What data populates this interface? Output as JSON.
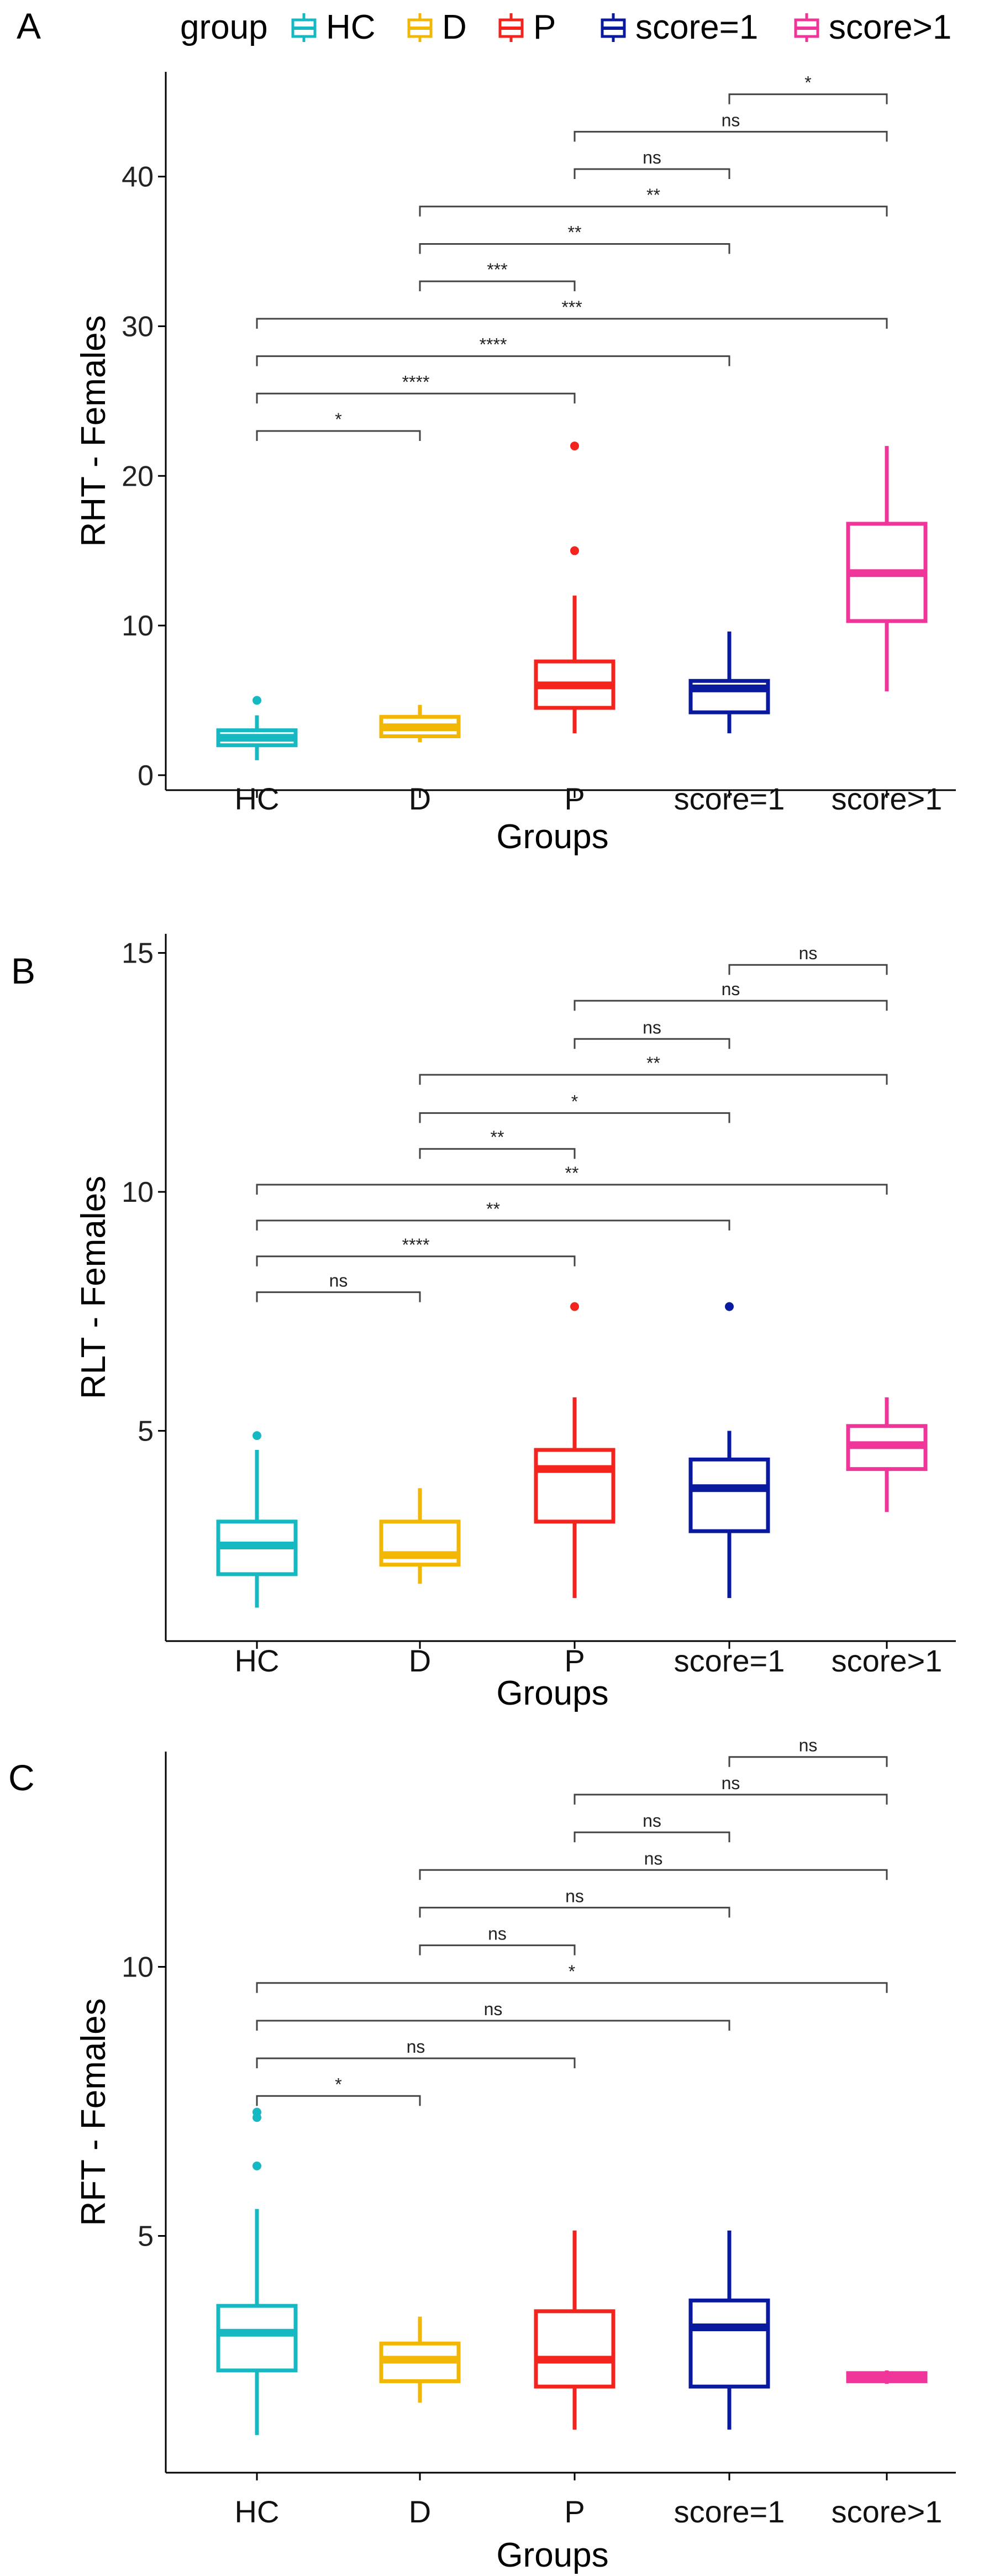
{
  "legend": {
    "title": "group",
    "items": [
      {
        "label": "HC",
        "color": "#16B8C2"
      },
      {
        "label": "D",
        "color": "#F2B705"
      },
      {
        "label": "P",
        "color": "#F2241D"
      },
      {
        "label": "score=1",
        "color": "#0A1A9E"
      },
      {
        "label": "score>1",
        "color": "#F0359A"
      }
    ]
  },
  "chart_data": [
    {
      "type": "box",
      "panel": "A",
      "ylabel": "RHT - Females",
      "xlabel": "Groups",
      "categories": [
        "HC",
        "D",
        "P",
        "score=1",
        "score>1"
      ],
      "colors": [
        "#16B8C2",
        "#F2B705",
        "#F2241D",
        "#0A1A9E",
        "#F0359A"
      ],
      "ylim": [
        -1,
        47
      ],
      "yticks": [
        0,
        10,
        20,
        30,
        40
      ],
      "boxes": [
        {
          "min": 1.0,
          "q1": 2.0,
          "median": 2.5,
          "q3": 3.0,
          "max": 4.0,
          "outliers": [
            5.0
          ]
        },
        {
          "min": 2.2,
          "q1": 2.6,
          "median": 3.2,
          "q3": 3.9,
          "max": 4.7,
          "outliers": []
        },
        {
          "min": 2.8,
          "q1": 4.5,
          "median": 6.0,
          "q3": 7.6,
          "max": 12.0,
          "outliers": [
            15.0,
            22.0
          ]
        },
        {
          "min": 2.8,
          "q1": 4.2,
          "median": 5.8,
          "q3": 6.3,
          "max": 9.6,
          "outliers": []
        },
        {
          "min": 5.6,
          "q1": 10.3,
          "median": 13.5,
          "q3": 16.8,
          "max": 22.0,
          "outliers": []
        }
      ],
      "comparisons": [
        {
          "a": 0,
          "b": 1,
          "y": 23.0,
          "label": "*"
        },
        {
          "a": 0,
          "b": 2,
          "y": 25.5,
          "label": "****"
        },
        {
          "a": 0,
          "b": 3,
          "y": 28.0,
          "label": "****"
        },
        {
          "a": 0,
          "b": 4,
          "y": 30.5,
          "label": "***"
        },
        {
          "a": 1,
          "b": 2,
          "y": 33.0,
          "label": "***"
        },
        {
          "a": 1,
          "b": 3,
          "y": 35.5,
          "label": "**"
        },
        {
          "a": 1,
          "b": 4,
          "y": 38.0,
          "label": "**"
        },
        {
          "a": 2,
          "b": 3,
          "y": 40.5,
          "label": "ns"
        },
        {
          "a": 2,
          "b": 4,
          "y": 43.0,
          "label": "ns"
        },
        {
          "a": 3,
          "b": 4,
          "y": 45.5,
          "label": "*"
        }
      ]
    },
    {
      "type": "box",
      "panel": "B",
      "ylabel": "RLT - Females",
      "xlabel": "Groups",
      "categories": [
        "HC",
        "D",
        "P",
        "score=1",
        "score>1"
      ],
      "colors": [
        "#16B8C2",
        "#F2B705",
        "#F2241D",
        "#0A1A9E",
        "#F0359A"
      ],
      "ylim": [
        0.6,
        15.4
      ],
      "yticks": [
        5,
        10,
        15
      ],
      "boxes": [
        {
          "min": 1.3,
          "q1": 2.0,
          "median": 2.6,
          "q3": 3.1,
          "max": 4.6,
          "outliers": [
            4.9
          ]
        },
        {
          "min": 1.8,
          "q1": 2.2,
          "median": 2.4,
          "q3": 3.1,
          "max": 3.8,
          "outliers": []
        },
        {
          "min": 1.5,
          "q1": 3.1,
          "median": 4.2,
          "q3": 4.6,
          "max": 5.7,
          "outliers": [
            7.6
          ]
        },
        {
          "min": 1.5,
          "q1": 2.9,
          "median": 3.8,
          "q3": 4.4,
          "max": 5.0,
          "outliers": [
            7.6
          ]
        },
        {
          "min": 3.3,
          "q1": 4.2,
          "median": 4.7,
          "q3": 5.1,
          "max": 5.7,
          "outliers": []
        }
      ],
      "comparisons": [
        {
          "a": 0,
          "b": 1,
          "y": 7.9,
          "label": "ns"
        },
        {
          "a": 0,
          "b": 2,
          "y": 8.65,
          "label": "****"
        },
        {
          "a": 0,
          "b": 3,
          "y": 9.4,
          "label": "**"
        },
        {
          "a": 0,
          "b": 4,
          "y": 10.15,
          "label": "**"
        },
        {
          "a": 1,
          "b": 2,
          "y": 10.9,
          "label": "**"
        },
        {
          "a": 1,
          "b": 3,
          "y": 11.65,
          "label": "*"
        },
        {
          "a": 1,
          "b": 4,
          "y": 12.45,
          "label": "**"
        },
        {
          "a": 2,
          "b": 3,
          "y": 13.2,
          "label": "ns"
        },
        {
          "a": 2,
          "b": 4,
          "y": 14.0,
          "label": "ns"
        },
        {
          "a": 3,
          "b": 4,
          "y": 14.75,
          "label": "ns"
        }
      ]
    },
    {
      "type": "box",
      "panel": "C",
      "ylabel": "RFT - Females",
      "xlabel": "Groups",
      "categories": [
        "HC",
        "D",
        "P",
        "score=1",
        "score>1"
      ],
      "colors": [
        "#16B8C2",
        "#F2B705",
        "#F2241D",
        "#0A1A9E",
        "#F0359A"
      ],
      "ylim": [
        0.6,
        14.0
      ],
      "yticks": [
        5,
        10
      ],
      "boxes": [
        {
          "min": 1.3,
          "q1": 2.5,
          "median": 3.2,
          "q3": 3.7,
          "max": 5.5,
          "outliers": [
            6.3,
            7.2,
            7.3
          ]
        },
        {
          "min": 1.9,
          "q1": 2.3,
          "median": 2.7,
          "q3": 3.0,
          "max": 3.5,
          "outliers": []
        },
        {
          "min": 1.4,
          "q1": 2.2,
          "median": 2.7,
          "q3": 3.6,
          "max": 5.1,
          "outliers": []
        },
        {
          "min": 1.4,
          "q1": 2.2,
          "median": 3.3,
          "q3": 3.8,
          "max": 5.1,
          "outliers": []
        },
        {
          "min": 2.25,
          "q1": 2.3,
          "median": 2.35,
          "q3": 2.45,
          "max": 2.5,
          "outliers": []
        }
      ],
      "comparisons": [
        {
          "a": 0,
          "b": 1,
          "y": 7.6,
          "label": "*"
        },
        {
          "a": 0,
          "b": 2,
          "y": 8.3,
          "label": "ns"
        },
        {
          "a": 0,
          "b": 3,
          "y": 9.0,
          "label": "ns"
        },
        {
          "a": 0,
          "b": 4,
          "y": 9.7,
          "label": "*"
        },
        {
          "a": 1,
          "b": 2,
          "y": 10.4,
          "label": "ns"
        },
        {
          "a": 1,
          "b": 3,
          "y": 11.1,
          "label": "ns"
        },
        {
          "a": 1,
          "b": 4,
          "y": 11.8,
          "label": "ns"
        },
        {
          "a": 2,
          "b": 3,
          "y": 12.5,
          "label": "ns"
        },
        {
          "a": 2,
          "b": 4,
          "y": 13.2,
          "label": "ns"
        },
        {
          "a": 3,
          "b": 4,
          "y": 13.9,
          "label": "ns"
        }
      ]
    }
  ]
}
